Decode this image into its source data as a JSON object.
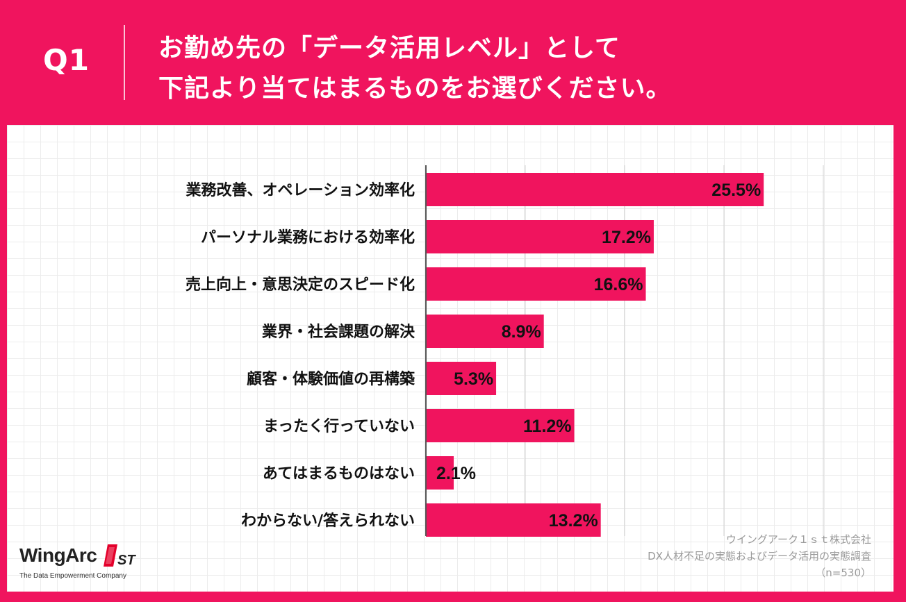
{
  "header": {
    "question_number": "Q1",
    "question_line1": "お勤め先の「データ活用レベル」として",
    "question_line2": "下記より当てはまるものをお選びください。"
  },
  "colors": {
    "accent": "#F0145E",
    "background": "#FFFFFF",
    "text": "#111111",
    "axis": "#555555",
    "gridline": "#d0d0d0",
    "source_text": "#9A9A9A"
  },
  "chart_data": {
    "type": "bar",
    "orientation": "horizontal",
    "categories": [
      "業務改善、オペレーション効率化",
      "パーソナル業務における効率化",
      "売上向上・意思決定のスピード化",
      "業界・社会課題の解決",
      "顧客・体験価値の再構築",
      "まったく行っていない",
      "あてはまるものはない",
      "わからない/答えられない"
    ],
    "values": [
      25.5,
      17.2,
      16.6,
      8.9,
      5.3,
      11.2,
      2.1,
      13.2
    ],
    "data_labels": [
      "25.5%",
      "17.2%",
      "16.6%",
      "8.9%",
      "5.3%",
      "11.2%",
      "2.1%",
      "13.2%"
    ],
    "unit": "%",
    "xlim": [
      0,
      30
    ],
    "grid_step": 7.5,
    "title": "",
    "xlabel": "",
    "ylabel": "",
    "legend": "none"
  },
  "source": {
    "line1": "ウイングアーク１ｓｔ株式会社",
    "line2": "DX人材不足の実態およびデータ活用の実態調査",
    "line3": "（n=530）"
  },
  "logo": {
    "wordmark": "WingArc",
    "mark": "1ST",
    "tagline": "The Data Empowerment Company"
  }
}
